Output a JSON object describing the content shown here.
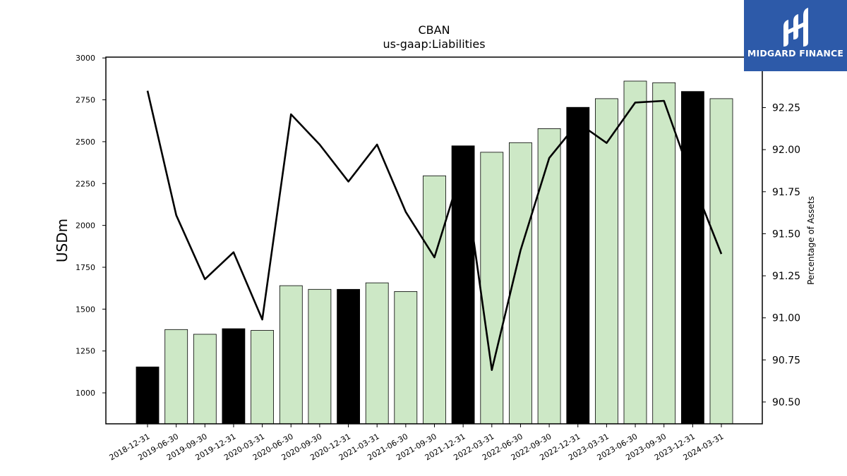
{
  "logo": {
    "name": "MIDGARD FINANCE",
    "color": "#2d5aa9"
  },
  "chart_data": {
    "type": "bar",
    "title": "CBAN",
    "subtitle": "us-gaap:Liabilities",
    "ylabel": "USDm",
    "y2label": "Percentage of Assets",
    "ylim": [
      815,
      3005
    ],
    "y2lim": [
      90.37,
      92.55
    ],
    "yticks": [
      1000,
      1250,
      1500,
      1750,
      2000,
      2250,
      2500,
      2750,
      3000
    ],
    "y2ticks": [
      "90.50",
      "90.75",
      "91.00",
      "91.25",
      "91.50",
      "91.75",
      "92.00",
      "92.25"
    ],
    "categories": [
      "2018-12-31",
      "2019-06-30",
      "2019-09-30",
      "2019-12-31",
      "2020-03-31",
      "2020-06-30",
      "2020-09-30",
      "2020-12-31",
      "2021-03-31",
      "2021-06-30",
      "2021-09-30",
      "2021-12-31",
      "2022-03-31",
      "2022-06-30",
      "2022-09-30",
      "2022-12-31",
      "2023-03-31",
      "2023-06-30",
      "2023-09-30",
      "2023-12-31",
      "2024-03-31"
    ],
    "series": [
      {
        "kind": "bar",
        "values": [
          1155,
          1378,
          1350,
          1383,
          1373,
          1640,
          1618,
          1618,
          1657,
          1605,
          2296,
          2475,
          2437,
          2494,
          2578,
          2705,
          2757,
          2862,
          2852,
          2800,
          2757
        ],
        "year_end_color": "#000000",
        "quarter_color": "#cde8c6"
      },
      {
        "kind": "line",
        "axis": "right",
        "color": "#000000",
        "values": [
          92.35,
          91.61,
          91.23,
          91.39,
          90.99,
          92.21,
          92.03,
          91.81,
          92.03,
          91.63,
          91.36,
          91.91,
          90.69,
          91.4,
          91.95,
          92.16,
          92.04,
          92.28,
          92.29,
          91.81,
          91.38
        ]
      }
    ]
  }
}
